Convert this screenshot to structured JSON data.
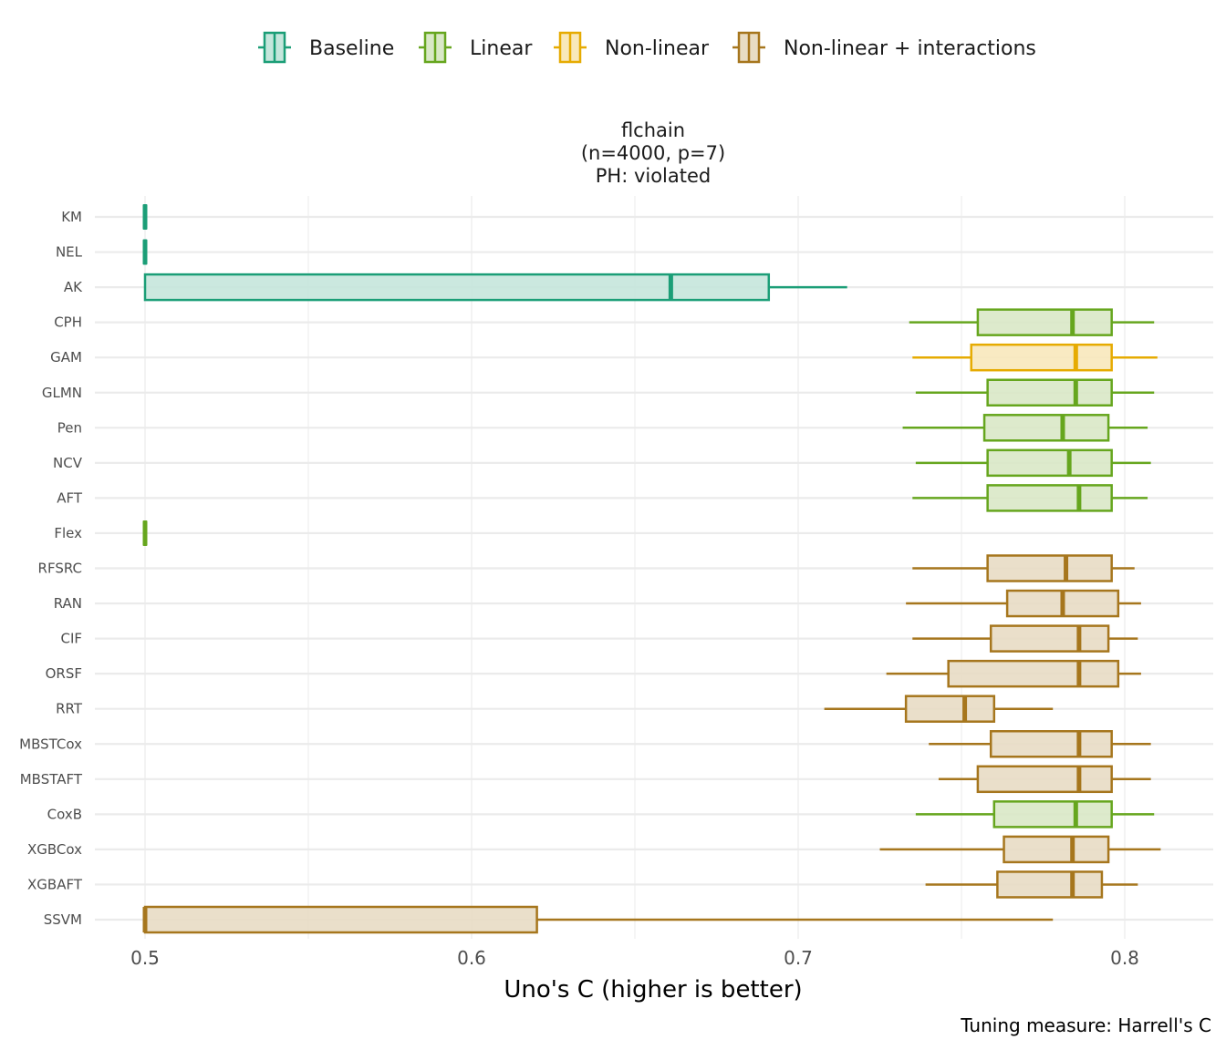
{
  "chart_data": {
    "type": "boxplot",
    "orientation": "horizontal",
    "facet_title": [
      "flchain",
      "(n=4000, p=7)",
      "PH: violated"
    ],
    "xlabel": "Uno's C (higher is better)",
    "ylabel": "",
    "caption": "Tuning measure: Harrell's C",
    "xlim": [
      0.4995,
      0.8265
    ],
    "x_ticks": [
      0.5,
      0.6,
      0.7,
      0.8
    ],
    "x_tick_labels": [
      "0.5",
      "0.6",
      "0.7",
      "0.8"
    ],
    "x_minor_ticks": [
      0.55,
      0.65,
      0.75
    ],
    "grid": true,
    "legend": {
      "position": "top",
      "entries": [
        {
          "name": "Baseline",
          "stroke": "#1b9e77",
          "fill": "#c5e6dc"
        },
        {
          "name": "Linear",
          "stroke": "#66a61e",
          "fill": "#d9e8c7"
        },
        {
          "name": "Non-linear",
          "stroke": "#e6ab02",
          "fill": "#f8e8bb"
        },
        {
          "name": "Non-linear + interactions",
          "stroke": "#a6761d",
          "fill": "#e8dcc4"
        }
      ]
    },
    "categories": [
      "KM",
      "NEL",
      "AK",
      "CPH",
      "GAM",
      "GLMN",
      "Pen",
      "NCV",
      "AFT",
      "Flex",
      "RFSRC",
      "RAN",
      "CIF",
      "ORSF",
      "RRT",
      "MBSTCox",
      "MBSTAFT",
      "CoxB",
      "XGBCox",
      "XGBAFT",
      "SSVM"
    ],
    "boxes": [
      {
        "learner": "KM",
        "group": "Baseline",
        "min": 0.5,
        "q1": 0.5,
        "median": 0.5,
        "q3": 0.5,
        "max": 0.5
      },
      {
        "learner": "NEL",
        "group": "Baseline",
        "min": 0.5,
        "q1": 0.5,
        "median": 0.5,
        "q3": 0.5,
        "max": 0.5
      },
      {
        "learner": "AK",
        "group": "Baseline",
        "min": 0.5,
        "q1": 0.5,
        "median": 0.661,
        "q3": 0.691,
        "max": 0.715
      },
      {
        "learner": "CPH",
        "group": "Linear",
        "min": 0.734,
        "q1": 0.755,
        "median": 0.784,
        "q3": 0.796,
        "max": 0.809
      },
      {
        "learner": "GAM",
        "group": "Non-linear",
        "min": 0.735,
        "q1": 0.753,
        "median": 0.785,
        "q3": 0.796,
        "max": 0.81
      },
      {
        "learner": "GLMN",
        "group": "Linear",
        "min": 0.736,
        "q1": 0.758,
        "median": 0.785,
        "q3": 0.796,
        "max": 0.809
      },
      {
        "learner": "Pen",
        "group": "Linear",
        "min": 0.732,
        "q1": 0.757,
        "median": 0.781,
        "q3": 0.795,
        "max": 0.807
      },
      {
        "learner": "NCV",
        "group": "Linear",
        "min": 0.736,
        "q1": 0.758,
        "median": 0.783,
        "q3": 0.796,
        "max": 0.808
      },
      {
        "learner": "AFT",
        "group": "Linear",
        "min": 0.735,
        "q1": 0.758,
        "median": 0.786,
        "q3": 0.796,
        "max": 0.807
      },
      {
        "learner": "Flex",
        "group": "Linear",
        "min": 0.5,
        "q1": 0.5,
        "median": 0.5,
        "q3": 0.5,
        "max": 0.5
      },
      {
        "learner": "RFSRC",
        "group": "Non-linear + interactions",
        "min": 0.735,
        "q1": 0.758,
        "median": 0.782,
        "q3": 0.796,
        "max": 0.803
      },
      {
        "learner": "RAN",
        "group": "Non-linear + interactions",
        "min": 0.733,
        "q1": 0.764,
        "median": 0.781,
        "q3": 0.798,
        "max": 0.805
      },
      {
        "learner": "CIF",
        "group": "Non-linear + interactions",
        "min": 0.735,
        "q1": 0.759,
        "median": 0.786,
        "q3": 0.795,
        "max": 0.804
      },
      {
        "learner": "ORSF",
        "group": "Non-linear + interactions",
        "min": 0.727,
        "q1": 0.746,
        "median": 0.786,
        "q3": 0.798,
        "max": 0.805
      },
      {
        "learner": "RRT",
        "group": "Non-linear + interactions",
        "min": 0.708,
        "q1": 0.733,
        "median": 0.751,
        "q3": 0.76,
        "max": 0.778
      },
      {
        "learner": "MBSTCox",
        "group": "Non-linear + interactions",
        "min": 0.74,
        "q1": 0.759,
        "median": 0.786,
        "q3": 0.796,
        "max": 0.808
      },
      {
        "learner": "MBSTAFT",
        "group": "Non-linear + interactions",
        "min": 0.743,
        "q1": 0.755,
        "median": 0.786,
        "q3": 0.796,
        "max": 0.808
      },
      {
        "learner": "CoxB",
        "group": "Linear",
        "min": 0.736,
        "q1": 0.76,
        "median": 0.785,
        "q3": 0.796,
        "max": 0.809
      },
      {
        "learner": "XGBCox",
        "group": "Non-linear + interactions",
        "min": 0.725,
        "q1": 0.763,
        "median": 0.784,
        "q3": 0.795,
        "max": 0.811
      },
      {
        "learner": "XGBAFT",
        "group": "Non-linear + interactions",
        "min": 0.739,
        "q1": 0.761,
        "median": 0.784,
        "q3": 0.793,
        "max": 0.804
      },
      {
        "learner": "SSVM",
        "group": "Non-linear + interactions",
        "min": 0.5,
        "q1": 0.5,
        "median": 0.5,
        "q3": 0.62,
        "max": 0.778
      }
    ]
  }
}
